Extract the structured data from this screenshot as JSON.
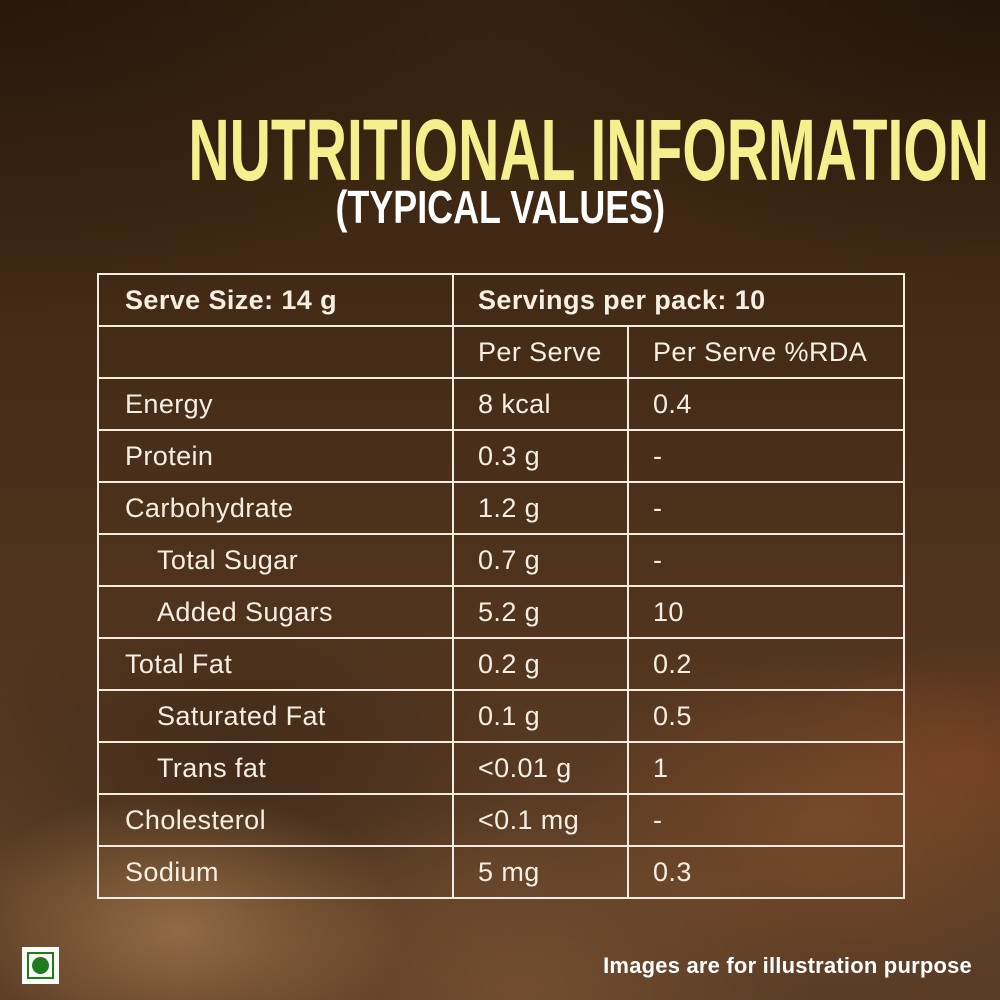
{
  "title": "NUTRITIONAL INFORMATION",
  "subtitle": "(TYPICAL VALUES)",
  "table": {
    "serve_size_label": "Serve Size: 14 g",
    "servings_label": "Servings per pack: 10",
    "col_header_per_serve": "Per Serve",
    "col_header_rda": "Per Serve %RDA",
    "rows": [
      {
        "label": "Energy",
        "per_serve": "8 kcal",
        "rda": "0.4",
        "indent": false
      },
      {
        "label": "Protein",
        "per_serve": "0.3 g",
        "rda": "-",
        "indent": false
      },
      {
        "label": "Carbohydrate",
        "per_serve": "1.2 g",
        "rda": "-",
        "indent": false
      },
      {
        "label": "Total Sugar",
        "per_serve": "0.7 g",
        "rda": "-",
        "indent": true
      },
      {
        "label": "Added Sugars",
        "per_serve": "5.2 g",
        "rda": "10",
        "indent": true
      },
      {
        "label": "Total Fat",
        "per_serve": "0.2 g",
        "rda": "0.2",
        "indent": false
      },
      {
        "label": "Saturated Fat",
        "per_serve": "0.1 g",
        "rda": "0.5",
        "indent": true
      },
      {
        "label": "Trans fat",
        "per_serve": "<0.01 g",
        "rda": "1",
        "indent": true
      },
      {
        "label": "Cholesterol",
        "per_serve": "<0.1 mg",
        "rda": "-",
        "indent": false
      },
      {
        "label": "Sodium",
        "per_serve": "5 mg",
        "rda": "0.3",
        "indent": false
      }
    ]
  },
  "footer": {
    "note": "Images are for illustration purpose"
  },
  "veg_symbol": {
    "meaning": "vegetarian-mark"
  },
  "colors": {
    "title_yellow": "#f6ef8d",
    "subtitle_white": "#ffffff",
    "table_text": "#f4eee3",
    "table_border": "#f2ebe0",
    "veg_green": "#1e7c1e",
    "background_brown_dark": "#35210f",
    "background_brown_light": "#5e3f26"
  }
}
